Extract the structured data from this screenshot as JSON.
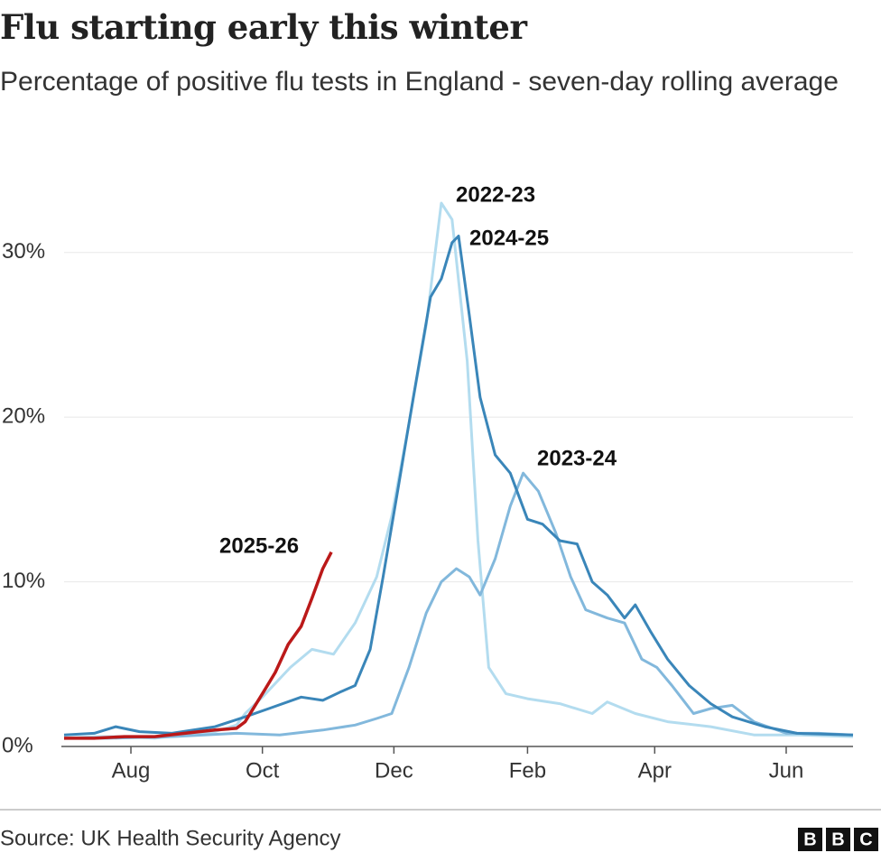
{
  "chart_data": {
    "type": "line",
    "title": "Flu starting early this winter",
    "subtitle": "Percentage of positive flu tests in England - seven-day rolling average",
    "source": "Source: UK Health Security Agency",
    "logo": [
      "B",
      "B",
      "C"
    ],
    "xlim": [
      0,
      366
    ],
    "xticks": [
      {
        "value": 31,
        "label": "Aug"
      },
      {
        "value": 92,
        "label": "Oct"
      },
      {
        "value": 153,
        "label": "Dec"
      },
      {
        "value": 215,
        "label": "Feb"
      },
      {
        "value": 274,
        "label": "Apr"
      },
      {
        "value": 335,
        "label": "Jun"
      }
    ],
    "ylim": [
      0,
      33
    ],
    "yticks": [
      {
        "value": 0,
        "label": "0%"
      },
      {
        "value": 10,
        "label": "10%"
      },
      {
        "value": 20,
        "label": "20%"
      },
      {
        "value": 30,
        "label": "30%"
      }
    ],
    "grid": true,
    "series": [
      {
        "name": "2022-23",
        "color": "#b3dcef",
        "x": [
          0,
          14,
          28,
          42,
          56,
          70,
          80,
          84,
          92,
          105,
          115,
          125,
          135,
          145,
          152,
          160,
          168,
          175,
          180,
          187,
          192,
          197,
          205,
          215,
          230,
          245,
          252,
          265,
          280,
          300,
          320,
          340,
          366
        ],
        "values": [
          0.5,
          0.6,
          0.6,
          0.5,
          0.7,
          0.9,
          1.3,
          2,
          3,
          4.8,
          5.9,
          5.6,
          7.5,
          10.3,
          14,
          19.6,
          25.6,
          33,
          32,
          23.4,
          12.5,
          4.8,
          3.2,
          2.9,
          2.6,
          2.0,
          2.7,
          2.0,
          1.5,
          1.2,
          0.7,
          0.7,
          0.6
        ]
      },
      {
        "name": "2023-24",
        "color": "#82b8dc",
        "x": [
          0,
          20,
          50,
          80,
          100,
          120,
          135,
          145,
          152,
          160,
          168,
          175,
          182,
          188,
          193,
          200,
          207,
          213,
          220,
          228,
          235,
          242,
          252,
          260,
          268,
          275,
          282,
          292,
          300,
          310,
          320,
          335,
          350,
          366
        ],
        "values": [
          0.5,
          0.5,
          0.6,
          0.8,
          0.7,
          1.0,
          1.3,
          1.7,
          2.0,
          4.8,
          8.1,
          10,
          10.8,
          10.3,
          9.2,
          11.4,
          14.6,
          16.6,
          15.5,
          13,
          10.3,
          8.3,
          7.8,
          7.5,
          5.3,
          4.8,
          3.7,
          2.0,
          2.3,
          2.5,
          1.5,
          0.8,
          0.8,
          0.7
        ]
      },
      {
        "name": "2024-25",
        "color": "#3a86b9",
        "x": [
          0,
          14,
          24,
          35,
          50,
          70,
          84,
          95,
          110,
          120,
          128,
          135,
          142,
          148,
          155,
          162,
          170,
          175,
          180,
          183,
          188,
          193,
          200,
          207,
          215,
          222,
          230,
          238,
          245,
          252,
          260,
          265,
          272,
          280,
          290,
          300,
          310,
          325,
          340,
          366
        ],
        "values": [
          0.7,
          0.8,
          1.2,
          0.9,
          0.8,
          1.2,
          1.8,
          2.3,
          3.0,
          2.8,
          3.3,
          3.7,
          5.9,
          10.3,
          15.7,
          21.2,
          27.3,
          28.4,
          30.6,
          31,
          26.2,
          21.2,
          17.7,
          16.6,
          13.8,
          13.5,
          12.5,
          12.3,
          10.0,
          9.2,
          7.8,
          8.6,
          7.0,
          5.3,
          3.7,
          2.6,
          1.8,
          1.2,
          0.8,
          0.7
        ]
      },
      {
        "name": "2025-26",
        "color": "#bb1919",
        "x": [
          0,
          14,
          28,
          42,
          56,
          70,
          80,
          84,
          92,
          98,
          104,
          110,
          115,
          120,
          124
        ],
        "values": [
          0.5,
          0.5,
          0.6,
          0.6,
          0.8,
          1.0,
          1.1,
          1.5,
          3.2,
          4.5,
          6.2,
          7.3,
          9.0,
          10.8,
          11.8
        ]
      }
    ]
  }
}
